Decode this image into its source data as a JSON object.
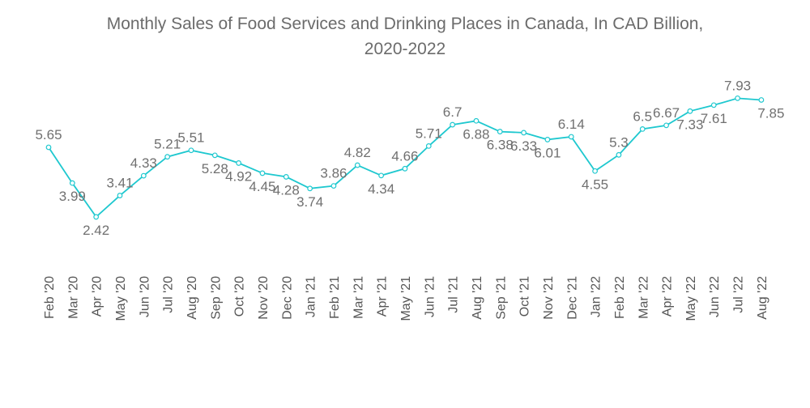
{
  "chart_data": {
    "type": "line",
    "title": "Monthly Sales of Food Services and Drinking Places in Canada, In CAD Billion, 2020-2022",
    "title_line1": "Monthly Sales of Food Services and Drinking Places in Canada, In CAD Billion,",
    "title_line2": "2020-2022",
    "categories": [
      "Feb '20",
      "Mar '20",
      "Apr '20",
      "May '20",
      "Jun '20",
      "Jul '20",
      "Aug '20",
      "Sep '20",
      "Oct '20",
      "Nov '20",
      "Dec '20",
      "Jan '21",
      "Feb '21",
      "Mar '21",
      "Apr '21",
      "May '21",
      "Jun '21",
      "Jul '21",
      "Aug '21",
      "Sep '21",
      "Oct '21",
      "Nov '21",
      "Dec '21",
      "Jan '22",
      "Feb '22",
      "Mar '22",
      "Apr '22",
      "May '22",
      "Jun '22",
      "Jul '22",
      "Aug '22"
    ],
    "values": [
      5.65,
      3.99,
      2.42,
      3.41,
      4.33,
      5.21,
      5.51,
      5.28,
      4.92,
      4.45,
      4.28,
      3.74,
      3.86,
      4.82,
      4.34,
      4.66,
      5.71,
      6.7,
      6.88,
      6.38,
      6.33,
      6.01,
      6.14,
      4.55,
      5.3,
      6.5,
      6.67,
      7.33,
      7.61,
      7.93,
      7.85
    ],
    "xlabel": "",
    "ylabel": "",
    "grid": false,
    "data_labels": true,
    "line_color": "#1ec8cf",
    "label_color": "#707070"
  }
}
